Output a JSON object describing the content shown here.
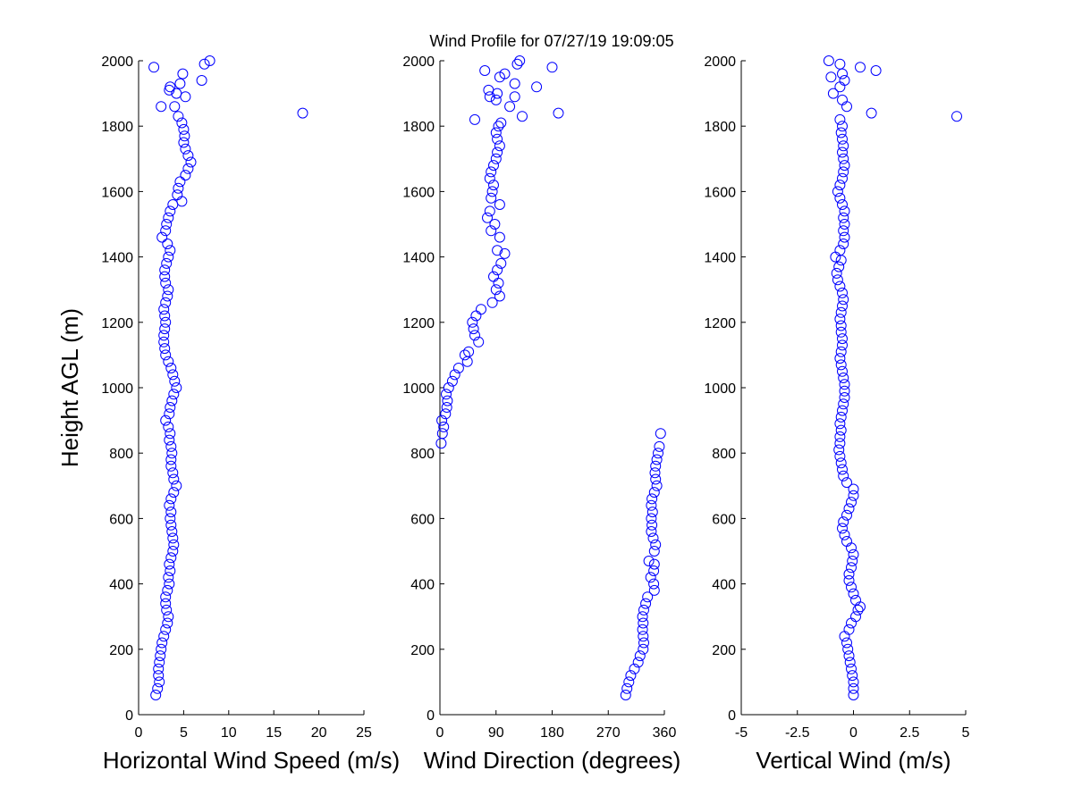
{
  "figure": {
    "title": "Wind Profile for  07/27/19 19:09:05",
    "ylabel": "Height AGL (m)",
    "marker_color": "#0000ff",
    "y_ticks": [
      0,
      200,
      400,
      600,
      800,
      1000,
      1200,
      1400,
      1600,
      1800,
      2000
    ]
  },
  "chart_data": [
    {
      "type": "scatter",
      "xlabel": "Horizontal Wind Speed (m/s)",
      "ylabel": "Height AGL (m)",
      "xlim": [
        0,
        25
      ],
      "ylim": [
        0,
        2000
      ],
      "x_ticks": [
        0,
        5,
        10,
        15,
        20,
        25
      ],
      "x_tick_labels": [
        "0",
        "5",
        "10",
        "15",
        "20",
        "25"
      ],
      "points": [
        [
          1.9,
          60
        ],
        [
          2.1,
          80
        ],
        [
          2.3,
          100
        ],
        [
          2.2,
          120
        ],
        [
          2.2,
          140
        ],
        [
          2.3,
          160
        ],
        [
          2.4,
          180
        ],
        [
          2.5,
          200
        ],
        [
          2.6,
          220
        ],
        [
          2.8,
          240
        ],
        [
          3.0,
          260
        ],
        [
          3.2,
          280
        ],
        [
          3.3,
          300
        ],
        [
          3.1,
          320
        ],
        [
          3.0,
          340
        ],
        [
          3.0,
          360
        ],
        [
          3.2,
          380
        ],
        [
          3.4,
          400
        ],
        [
          3.3,
          420
        ],
        [
          3.5,
          440
        ],
        [
          3.4,
          460
        ],
        [
          3.6,
          480
        ],
        [
          3.8,
          500
        ],
        [
          3.9,
          520
        ],
        [
          3.8,
          540
        ],
        [
          3.7,
          560
        ],
        [
          3.6,
          580
        ],
        [
          3.5,
          600
        ],
        [
          3.6,
          620
        ],
        [
          3.4,
          640
        ],
        [
          3.6,
          660
        ],
        [
          3.9,
          680
        ],
        [
          4.2,
          700
        ],
        [
          3.9,
          720
        ],
        [
          3.8,
          740
        ],
        [
          3.6,
          760
        ],
        [
          3.6,
          780
        ],
        [
          3.7,
          800
        ],
        [
          3.6,
          820
        ],
        [
          3.4,
          840
        ],
        [
          3.5,
          860
        ],
        [
          3.3,
          880
        ],
        [
          3.0,
          900
        ],
        [
          3.4,
          920
        ],
        [
          3.5,
          940
        ],
        [
          3.7,
          960
        ],
        [
          3.9,
          980
        ],
        [
          4.2,
          1000
        ],
        [
          4.0,
          1020
        ],
        [
          3.8,
          1040
        ],
        [
          3.6,
          1060
        ],
        [
          3.3,
          1080
        ],
        [
          3.0,
          1100
        ],
        [
          2.9,
          1120
        ],
        [
          2.8,
          1140
        ],
        [
          2.8,
          1160
        ],
        [
          2.9,
          1180
        ],
        [
          3.0,
          1200
        ],
        [
          2.9,
          1220
        ],
        [
          2.8,
          1240
        ],
        [
          3.0,
          1260
        ],
        [
          3.2,
          1280
        ],
        [
          3.3,
          1300
        ],
        [
          3.0,
          1320
        ],
        [
          2.9,
          1340
        ],
        [
          2.9,
          1360
        ],
        [
          3.1,
          1380
        ],
        [
          3.3,
          1400
        ],
        [
          3.5,
          1420
        ],
        [
          3.2,
          1440
        ],
        [
          2.6,
          1460
        ],
        [
          3.0,
          1480
        ],
        [
          3.1,
          1500
        ],
        [
          3.3,
          1520
        ],
        [
          3.5,
          1540
        ],
        [
          3.8,
          1560
        ],
        [
          4.8,
          1570
        ],
        [
          4.3,
          1590
        ],
        [
          4.4,
          1610
        ],
        [
          4.6,
          1630
        ],
        [
          5.2,
          1650
        ],
        [
          5.5,
          1670
        ],
        [
          5.8,
          1690
        ],
        [
          5.5,
          1710
        ],
        [
          5.2,
          1730
        ],
        [
          5.0,
          1750
        ],
        [
          5.1,
          1770
        ],
        [
          5.0,
          1790
        ],
        [
          4.8,
          1810
        ],
        [
          4.4,
          1830
        ],
        [
          18.2,
          1840
        ],
        [
          4.0,
          1860
        ],
        [
          2.5,
          1860
        ],
        [
          5.2,
          1890
        ],
        [
          4.2,
          1900
        ],
        [
          3.4,
          1910
        ],
        [
          3.5,
          1920
        ],
        [
          4.6,
          1930
        ],
        [
          7.0,
          1940
        ],
        [
          4.9,
          1960
        ],
        [
          1.7,
          1980
        ],
        [
          7.3,
          1990
        ],
        [
          7.9,
          2000
        ]
      ]
    },
    {
      "type": "scatter",
      "xlabel": "Wind Direction (degrees)",
      "ylabel": "Height AGL (m)",
      "xlim": [
        0,
        360
      ],
      "ylim": [
        0,
        2000
      ],
      "x_ticks": [
        0,
        90,
        180,
        270,
        360
      ],
      "x_tick_labels": [
        "0",
        "90",
        "180",
        "270",
        "360"
      ],
      "points": [
        [
          298,
          60
        ],
        [
          300,
          80
        ],
        [
          303,
          100
        ],
        [
          306,
          120
        ],
        [
          312,
          140
        ],
        [
          318,
          160
        ],
        [
          321,
          180
        ],
        [
          326,
          200
        ],
        [
          327,
          220
        ],
        [
          326,
          240
        ],
        [
          325,
          260
        ],
        [
          326,
          280
        ],
        [
          325,
          300
        ],
        [
          327,
          320
        ],
        [
          330,
          340
        ],
        [
          333,
          360
        ],
        [
          344,
          380
        ],
        [
          343,
          400
        ],
        [
          338,
          420
        ],
        [
          343,
          440
        ],
        [
          344,
          460
        ],
        [
          335,
          470
        ],
        [
          344,
          500
        ],
        [
          346,
          520
        ],
        [
          342,
          540
        ],
        [
          339,
          560
        ],
        [
          340,
          580
        ],
        [
          339,
          600
        ],
        [
          341,
          620
        ],
        [
          339,
          640
        ],
        [
          340,
          660
        ],
        [
          344,
          680
        ],
        [
          348,
          700
        ],
        [
          346,
          720
        ],
        [
          345,
          740
        ],
        [
          346,
          760
        ],
        [
          348,
          780
        ],
        [
          350,
          800
        ],
        [
          352,
          820
        ],
        [
          354,
          860
        ],
        [
          2,
          830
        ],
        [
          4,
          860
        ],
        [
          6,
          880
        ],
        [
          3,
          900
        ],
        [
          9,
          920
        ],
        [
          11,
          940
        ],
        [
          12,
          960
        ],
        [
          10,
          980
        ],
        [
          14,
          1000
        ],
        [
          20,
          1020
        ],
        [
          24,
          1040
        ],
        [
          30,
          1060
        ],
        [
          44,
          1080
        ],
        [
          40,
          1100
        ],
        [
          46,
          1110
        ],
        [
          62,
          1140
        ],
        [
          56,
          1160
        ],
        [
          54,
          1180
        ],
        [
          52,
          1200
        ],
        [
          58,
          1220
        ],
        [
          66,
          1240
        ],
        [
          84,
          1260
        ],
        [
          96,
          1280
        ],
        [
          90,
          1300
        ],
        [
          94,
          1320
        ],
        [
          86,
          1340
        ],
        [
          92,
          1360
        ],
        [
          98,
          1380
        ],
        [
          104,
          1410
        ],
        [
          92,
          1420
        ],
        [
          96,
          1460
        ],
        [
          82,
          1480
        ],
        [
          88,
          1500
        ],
        [
          76,
          1520
        ],
        [
          80,
          1540
        ],
        [
          96,
          1560
        ],
        [
          82,
          1580
        ],
        [
          84,
          1600
        ],
        [
          86,
          1620
        ],
        [
          80,
          1640
        ],
        [
          82,
          1660
        ],
        [
          86,
          1680
        ],
        [
          90,
          1700
        ],
        [
          92,
          1720
        ],
        [
          96,
          1740
        ],
        [
          92,
          1760
        ],
        [
          90,
          1780
        ],
        [
          94,
          1800
        ],
        [
          98,
          1810
        ],
        [
          56,
          1820
        ],
        [
          132,
          1830
        ],
        [
          190,
          1840
        ],
        [
          112,
          1860
        ],
        [
          90,
          1880
        ],
        [
          80,
          1890
        ],
        [
          120,
          1890
        ],
        [
          92,
          1900
        ],
        [
          78,
          1910
        ],
        [
          155,
          1920
        ],
        [
          120,
          1930
        ],
        [
          96,
          1950
        ],
        [
          104,
          1960
        ],
        [
          72,
          1970
        ],
        [
          180,
          1980
        ],
        [
          124,
          1990
        ],
        [
          128,
          2000
        ]
      ]
    },
    {
      "type": "scatter",
      "xlabel": "Vertical Wind (m/s)",
      "ylabel": "Height AGL (m)",
      "xlim": [
        -5,
        5
      ],
      "ylim": [
        0,
        2000
      ],
      "x_ticks": [
        -5,
        -2.5,
        0,
        2.5,
        5
      ],
      "x_tick_labels": [
        "-5",
        "-2.5",
        "0",
        "2.5",
        "5"
      ],
      "points": [
        [
          0.0,
          60
        ],
        [
          0.0,
          80
        ],
        [
          0.0,
          100
        ],
        [
          -0.05,
          120
        ],
        [
          -0.1,
          140
        ],
        [
          -0.15,
          160
        ],
        [
          -0.2,
          180
        ],
        [
          -0.25,
          200
        ],
        [
          -0.3,
          220
        ],
        [
          -0.4,
          240
        ],
        [
          -0.2,
          260
        ],
        [
          -0.1,
          280
        ],
        [
          0.1,
          300
        ],
        [
          0.2,
          320
        ],
        [
          0.3,
          330
        ],
        [
          0.1,
          350
        ],
        [
          0.0,
          370
        ],
        [
          -0.1,
          390
        ],
        [
          -0.2,
          410
        ],
        [
          -0.2,
          430
        ],
        [
          -0.1,
          450
        ],
        [
          -0.05,
          470
        ],
        [
          0.0,
          490
        ],
        [
          -0.1,
          510
        ],
        [
          -0.3,
          530
        ],
        [
          -0.4,
          550
        ],
        [
          -0.5,
          570
        ],
        [
          -0.45,
          590
        ],
        [
          -0.3,
          610
        ],
        [
          -0.2,
          630
        ],
        [
          -0.1,
          650
        ],
        [
          0.0,
          670
        ],
        [
          0.0,
          690
        ],
        [
          -0.3,
          710
        ],
        [
          -0.45,
          730
        ],
        [
          -0.5,
          750
        ],
        [
          -0.55,
          770
        ],
        [
          -0.6,
          790
        ],
        [
          -0.65,
          810
        ],
        [
          -0.6,
          830
        ],
        [
          -0.6,
          850
        ],
        [
          -0.55,
          870
        ],
        [
          -0.6,
          890
        ],
        [
          -0.55,
          910
        ],
        [
          -0.5,
          930
        ],
        [
          -0.45,
          950
        ],
        [
          -0.4,
          970
        ],
        [
          -0.4,
          990
        ],
        [
          -0.4,
          1010
        ],
        [
          -0.45,
          1030
        ],
        [
          -0.5,
          1050
        ],
        [
          -0.55,
          1070
        ],
        [
          -0.6,
          1090
        ],
        [
          -0.55,
          1110
        ],
        [
          -0.5,
          1130
        ],
        [
          -0.5,
          1150
        ],
        [
          -0.55,
          1170
        ],
        [
          -0.55,
          1190
        ],
        [
          -0.6,
          1210
        ],
        [
          -0.55,
          1230
        ],
        [
          -0.5,
          1250
        ],
        [
          -0.45,
          1270
        ],
        [
          -0.5,
          1290
        ],
        [
          -0.6,
          1310
        ],
        [
          -0.7,
          1330
        ],
        [
          -0.75,
          1350
        ],
        [
          -0.65,
          1370
        ],
        [
          -0.55,
          1390
        ],
        [
          -0.8,
          1400
        ],
        [
          -0.6,
          1420
        ],
        [
          -0.45,
          1440
        ],
        [
          -0.4,
          1460
        ],
        [
          -0.45,
          1480
        ],
        [
          -0.4,
          1500
        ],
        [
          -0.45,
          1520
        ],
        [
          -0.4,
          1540
        ],
        [
          -0.5,
          1560
        ],
        [
          -0.6,
          1580
        ],
        [
          -0.7,
          1600
        ],
        [
          -0.6,
          1620
        ],
        [
          -0.5,
          1640
        ],
        [
          -0.45,
          1660
        ],
        [
          -0.4,
          1680
        ],
        [
          -0.45,
          1700
        ],
        [
          -0.5,
          1720
        ],
        [
          -0.45,
          1740
        ],
        [
          -0.5,
          1760
        ],
        [
          -0.55,
          1780
        ],
        [
          -0.5,
          1800
        ],
        [
          -0.6,
          1820
        ],
        [
          4.6,
          1830
        ],
        [
          0.8,
          1840
        ],
        [
          -0.3,
          1860
        ],
        [
          -0.5,
          1880
        ],
        [
          -0.9,
          1900
        ],
        [
          -0.6,
          1920
        ],
        [
          -0.4,
          1940
        ],
        [
          -1.0,
          1950
        ],
        [
          -0.5,
          1960
        ],
        [
          1.0,
          1970
        ],
        [
          0.3,
          1980
        ],
        [
          -0.6,
          1990
        ],
        [
          -1.1,
          2000
        ]
      ]
    }
  ]
}
